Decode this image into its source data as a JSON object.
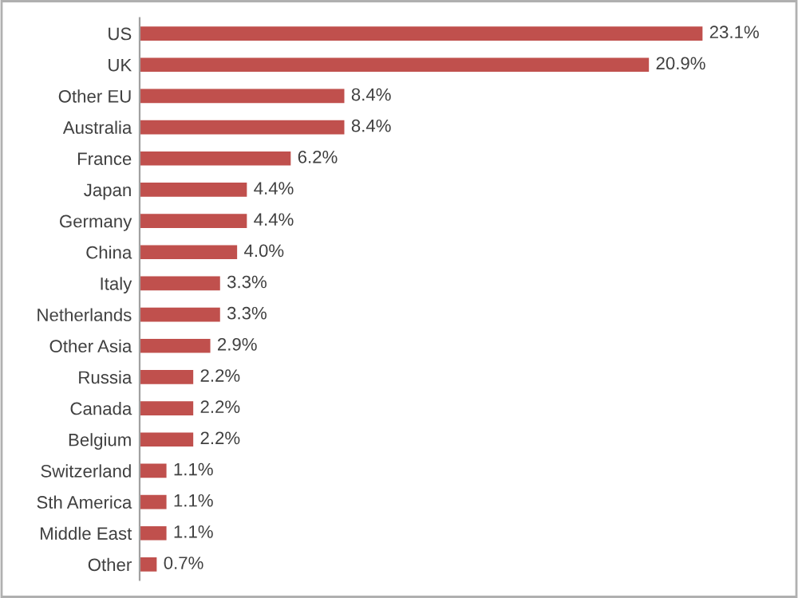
{
  "chart_data": {
    "type": "bar",
    "orientation": "horizontal",
    "categories": [
      "US",
      "UK",
      "Other EU",
      "Australia",
      "France",
      "Japan",
      "Germany",
      "China",
      "Italy",
      "Netherlands",
      "Other Asia",
      "Russia",
      "Canada",
      "Belgium",
      "Switzerland",
      "Sth America",
      "Middle East",
      "Other"
    ],
    "values": [
      23.1,
      20.9,
      8.4,
      8.4,
      6.2,
      4.4,
      4.4,
      4.0,
      3.3,
      3.3,
      2.9,
      2.2,
      2.2,
      2.2,
      1.1,
      1.1,
      1.1,
      0.7
    ],
    "value_labels": [
      "23.1%",
      "20.9%",
      "8.4%",
      "8.4%",
      "6.2%",
      "4.4%",
      "4.4%",
      "4.0%",
      "3.3%",
      "3.3%",
      "2.9%",
      "2.2%",
      "2.2%",
      "2.2%",
      "1.1%",
      "1.1%",
      "1.1%",
      "0.7%"
    ],
    "color": "#c0504d",
    "grid": false,
    "legend": false
  }
}
